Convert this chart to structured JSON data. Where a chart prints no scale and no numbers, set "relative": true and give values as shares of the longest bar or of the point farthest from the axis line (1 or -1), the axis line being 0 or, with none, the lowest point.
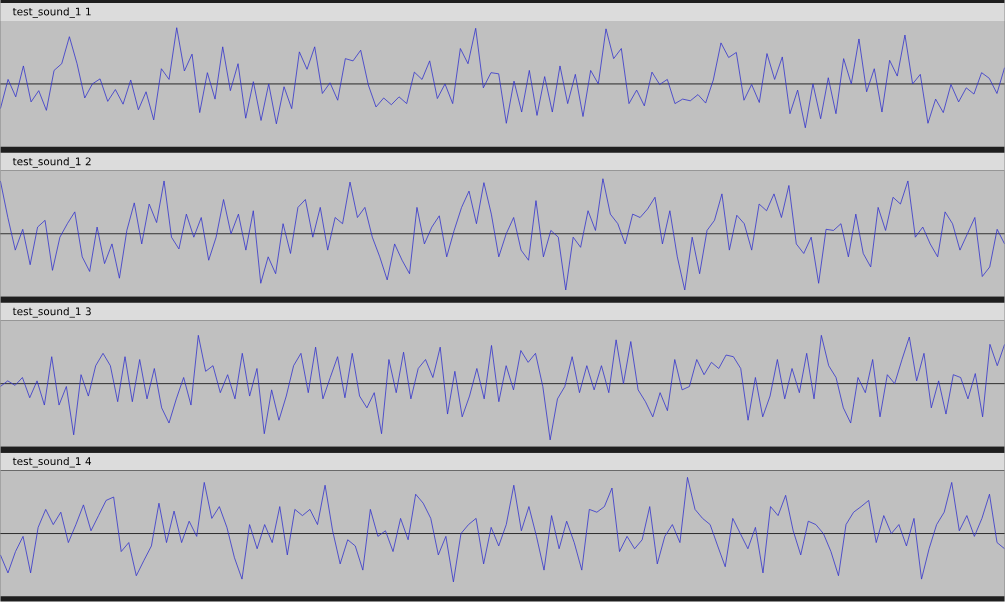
{
  "chart_data": [
    {
      "type": "line",
      "title": "test_sound_1 1",
      "relative": true,
      "color": "#3333cc",
      "categories": [
        null,
        null,
        null,
        null,
        null,
        null,
        null,
        null,
        null,
        null,
        null,
        null,
        null,
        null,
        null,
        null,
        null,
        null,
        null,
        null,
        null,
        null,
        null,
        null,
        null,
        null,
        null,
        null,
        null,
        null,
        null,
        null,
        null,
        null,
        null,
        null,
        null,
        null,
        null,
        null,
        null,
        null,
        null,
        null,
        null,
        null,
        null,
        null,
        null,
        null,
        null,
        null,
        null,
        null,
        null,
        null,
        null,
        null,
        null,
        null,
        null,
        null,
        null,
        null,
        null,
        null,
        null,
        null,
        null,
        null,
        null,
        null,
        null,
        null,
        null,
        null,
        null,
        null,
        null,
        null,
        null,
        null,
        null,
        null,
        null,
        null,
        null,
        null,
        null,
        null,
        null,
        null,
        null,
        null,
        null,
        null,
        null,
        null,
        null,
        null,
        null,
        null,
        null,
        null,
        null,
        null,
        null,
        null,
        null,
        null,
        null,
        null,
        null,
        null,
        null,
        null,
        null,
        null,
        null,
        null,
        null,
        null,
        null,
        null,
        null,
        null,
        null,
        null,
        null,
        null,
        null,
        null
      ],
      "values": [
        -0.44,
        0.08,
        -0.23,
        0.32,
        -0.32,
        -0.12,
        -0.47,
        0.24,
        0.36,
        0.84,
        0.36,
        -0.25,
        0,
        0.09,
        -0.31,
        -0.1,
        -0.36,
        0.07,
        -0.46,
        -0.14,
        -0.64,
        0.27,
        0.08,
        1.0,
        0.23,
        0.53,
        -0.51,
        0.2,
        -0.27,
        0.66,
        -0.12,
        0.36,
        -0.61,
        0.04,
        -0.65,
        0,
        -0.71,
        -0.05,
        -0.44,
        0.57,
        0.26,
        0.66,
        -0.17,
        0.02,
        -0.29,
        0.45,
        0.41,
        0.6,
        -0.02,
        -0.41,
        -0.25,
        -0.37,
        -0.23,
        -0.35,
        0.21,
        0.08,
        0.41,
        -0.26,
        0,
        -0.35,
        0.63,
        0.36,
        0.99,
        -0.07,
        0.2,
        0.18,
        -0.7,
        0.05,
        -0.5,
        0.24,
        -0.56,
        0.13,
        -0.5,
        0.32,
        -0.35,
        0.17,
        -0.58,
        0.24,
        0,
        0.98,
        0.45,
        0.63,
        -0.35,
        -0.11,
        -0.39,
        0.21,
        -0.01,
        0.08,
        -0.35,
        -0.27,
        -0.3,
        -0.19,
        -0.34,
        0.07,
        0.73,
        0.47,
        0.56,
        -0.29,
        -0.01,
        -0.33,
        0.54,
        0.08,
        0.48,
        -0.53,
        -0.11,
        -0.78,
        0,
        -0.62,
        0.11,
        -0.53,
        0.45,
        0,
        0.8,
        -0.14,
        0.27,
        -0.5,
        0.42,
        0.14,
        0.87,
        0,
        0.17,
        -0.7,
        -0.27,
        -0.51,
        -0.01,
        -0.32,
        -0.07,
        -0.18,
        0.2,
        0.1,
        -0.17,
        0.29
      ]
    },
    {
      "type": "line",
      "title": "test_sound_1 2",
      "relative": true,
      "color": "#3333cc",
      "categories": [
        null,
        null,
        null,
        null,
        null,
        null,
        null,
        null,
        null,
        null,
        null,
        null,
        null,
        null,
        null,
        null,
        null,
        null,
        null,
        null,
        null,
        null,
        null,
        null,
        null,
        null,
        null,
        null,
        null,
        null,
        null,
        null,
        null,
        null,
        null,
        null,
        null,
        null,
        null,
        null,
        null,
        null,
        null,
        null,
        null,
        null,
        null,
        null,
        null,
        null,
        null,
        null,
        null,
        null,
        null,
        null,
        null,
        null,
        null,
        null,
        null,
        null,
        null,
        null,
        null,
        null,
        null,
        null,
        null,
        null,
        null,
        null,
        null,
        null,
        null,
        null,
        null,
        null,
        null,
        null,
        null,
        null,
        null,
        null,
        null,
        null,
        null,
        null,
        null,
        null,
        null,
        null,
        null,
        null,
        null,
        null,
        null,
        null,
        null,
        null,
        null,
        null,
        null,
        null,
        null,
        null,
        null,
        null,
        null,
        null,
        null,
        null,
        null,
        null,
        null,
        null,
        null,
        null,
        null,
        null,
        null,
        null,
        null,
        null,
        null,
        null,
        null,
        null,
        null,
        null,
        null,
        null,
        null,
        null,
        null,
        null
      ],
      "values": [
        0.94,
        0.29,
        -0.29,
        0.08,
        -0.55,
        0.12,
        0.24,
        -0.65,
        -0.06,
        0.18,
        0.39,
        -0.41,
        -0.67,
        0.12,
        -0.53,
        -0.18,
        -0.79,
        0.06,
        0.55,
        -0.18,
        0.53,
        0.2,
        0.94,
        -0.06,
        -0.27,
        0.35,
        -0.06,
        0.29,
        -0.47,
        -0.06,
        0.61,
        0,
        0.35,
        -0.29,
        0.41,
        -0.88,
        -0.41,
        -0.71,
        0.18,
        -0.35,
        0.47,
        0.61,
        -0.06,
        0.47,
        -0.29,
        0.29,
        0.18,
        0.92,
        0.29,
        0.47,
        -0.06,
        -0.41,
        -0.82,
        -0.18,
        -0.47,
        -0.71,
        0.47,
        -0.18,
        0.12,
        0.32,
        -0.41,
        0.06,
        0.47,
        0.76,
        0.18,
        0.91,
        0.35,
        -0.41,
        0,
        0.29,
        -0.29,
        -0.47,
        0.59,
        -0.41,
        0.06,
        -0.06,
        -1.0,
        -0.06,
        -0.24,
        0.41,
        0.06,
        0.98,
        0.35,
        0.18,
        -0.18,
        0.35,
        0.29,
        0.44,
        0.65,
        -0.18,
        0.41,
        -0.41,
        -1.0,
        -0.06,
        -0.71,
        0.06,
        0.24,
        0.71,
        -0.29,
        0.33,
        0.18,
        -0.29,
        0.53,
        0.41,
        0.71,
        0.29,
        0.86,
        -0.18,
        -0.35,
        -0.06,
        -0.88,
        0.08,
        0.06,
        0.18,
        -0.41,
        0.35,
        -0.35,
        -0.59,
        0.47,
        0.06,
        0.65,
        0.53,
        0.94,
        -0.06,
        0.12,
        -0.18,
        -0.41,
        0.39,
        0.18,
        -0.29,
        0,
        0.29,
        -0.76,
        -0.59,
        0.08,
        -0.18
      ]
    },
    {
      "type": "line",
      "title": "test_sound_1 3",
      "relative": true,
      "color": "#3333cc",
      "categories": [
        null,
        null,
        null,
        null,
        null,
        null,
        null,
        null,
        null,
        null,
        null,
        null,
        null,
        null,
        null,
        null,
        null,
        null,
        null,
        null,
        null,
        null,
        null,
        null,
        null,
        null,
        null,
        null,
        null,
        null,
        null,
        null,
        null,
        null,
        null,
        null,
        null,
        null,
        null,
        null,
        null,
        null,
        null,
        null,
        null,
        null,
        null,
        null,
        null,
        null,
        null,
        null,
        null,
        null,
        null,
        null,
        null,
        null,
        null,
        null,
        null,
        null,
        null,
        null,
        null,
        null,
        null,
        null,
        null,
        null,
        null,
        null,
        null,
        null,
        null,
        null,
        null,
        null,
        null,
        null,
        null,
        null,
        null,
        null,
        null,
        null,
        null,
        null,
        null,
        null,
        null,
        null,
        null,
        null,
        null,
        null,
        null,
        null,
        null,
        null,
        null,
        null,
        null,
        null,
        null,
        null,
        null,
        null,
        null,
        null,
        null,
        null,
        null,
        null,
        null,
        null,
        null,
        null,
        null,
        null,
        null,
        null,
        null,
        null,
        null,
        null,
        null,
        null,
        null,
        null,
        null,
        null,
        null,
        null,
        null,
        null,
        null,
        null
      ],
      "values": [
        -0.05,
        0.05,
        -0.03,
        0.11,
        -0.25,
        0.05,
        -0.38,
        0.48,
        -0.38,
        -0.05,
        -0.91,
        0.16,
        -0.22,
        0.32,
        0.54,
        0.32,
        -0.32,
        0.48,
        -0.32,
        0.43,
        -0.27,
        0.27,
        -0.43,
        -0.7,
        -0.27,
        0.11,
        -0.38,
        0.86,
        0.22,
        0.32,
        -0.16,
        0.16,
        -0.27,
        0.54,
        -0.22,
        0.27,
        -0.89,
        -0.11,
        -0.65,
        -0.22,
        0.32,
        0.54,
        -0.16,
        0.65,
        -0.27,
        0.11,
        0.48,
        -0.25,
        0.54,
        -0.22,
        -0.43,
        -0.16,
        -0.89,
        0.43,
        -0.16,
        0.56,
        -0.27,
        0.27,
        0.43,
        0.11,
        0.65,
        -0.54,
        0.22,
        -0.59,
        -0.22,
        0.27,
        -0.27,
        0.68,
        -0.32,
        0.32,
        -0.11,
        0.59,
        0.38,
        0.54,
        -0.05,
        -1.0,
        -0.27,
        -0.05,
        0.48,
        -0.16,
        0.32,
        -0.11,
        0.32,
        -0.16,
        0.78,
        0,
        0.75,
        -0.11,
        -0.32,
        -0.59,
        -0.16,
        -0.48,
        0.43,
        -0.11,
        -0.05,
        0.43,
        0.16,
        0.38,
        0.27,
        0.51,
        0.48,
        0.27,
        -0.65,
        0.11,
        -0.59,
        -0.22,
        0.43,
        -0.27,
        0.27,
        -0.16,
        0.54,
        -0.27,
        0.86,
        0.32,
        0.11,
        -0.43,
        -0.7,
        0.11,
        -0.16,
        0.43,
        -0.59,
        0.16,
        0,
        0.43,
        0.83,
        0.05,
        0.54,
        -0.43,
        0.05,
        -0.54,
        0.16,
        0.11,
        -0.27,
        0.18,
        -0.59,
        0.7,
        0.32,
        0.7
      ]
    },
    {
      "type": "line",
      "title": "test_sound_1 4",
      "relative": true,
      "color": "#3333cc",
      "categories": [
        null,
        null,
        null,
        null,
        null,
        null,
        null,
        null,
        null,
        null,
        null,
        null,
        null,
        null,
        null,
        null,
        null,
        null,
        null,
        null,
        null,
        null,
        null,
        null,
        null,
        null,
        null,
        null,
        null,
        null,
        null,
        null,
        null,
        null,
        null,
        null,
        null,
        null,
        null,
        null,
        null,
        null,
        null,
        null,
        null,
        null,
        null,
        null,
        null,
        null,
        null,
        null,
        null,
        null,
        null,
        null,
        null,
        null,
        null,
        null,
        null,
        null,
        null,
        null,
        null,
        null,
        null,
        null,
        null,
        null,
        null,
        null,
        null,
        null,
        null,
        null,
        null,
        null,
        null,
        null,
        null,
        null,
        null,
        null,
        null,
        null,
        null,
        null,
        null,
        null,
        null,
        null,
        null,
        null,
        null,
        null,
        null,
        null,
        null,
        null,
        null,
        null,
        null,
        null,
        null,
        null,
        null,
        null,
        null,
        null,
        null,
        null,
        null,
        null,
        null,
        null,
        null,
        null,
        null,
        null,
        null,
        null,
        null,
        null,
        null,
        null,
        null,
        null,
        null,
        null,
        null,
        null,
        null,
        null
      ],
      "values": [
        -0.38,
        -0.7,
        -0.32,
        -0.05,
        -0.7,
        0.11,
        0.43,
        0.16,
        0.38,
        -0.16,
        0.16,
        0.51,
        0.05,
        0.32,
        0.59,
        0.65,
        -0.32,
        -0.16,
        -0.75,
        -0.48,
        -0.22,
        0.54,
        -0.16,
        0.4,
        -0.16,
        0.22,
        -0.05,
        0.91,
        0.27,
        0.48,
        0.11,
        -0.43,
        -0.81,
        0.16,
        -0.27,
        0.16,
        -0.16,
        0.48,
        -0.38,
        0.43,
        0.32,
        0.43,
        0.16,
        0.86,
        0.05,
        -0.54,
        -0.11,
        -0.22,
        -0.65,
        0.43,
        -0.05,
        0.05,
        -0.32,
        0.27,
        -0.11,
        0.7,
        0.54,
        0.27,
        -0.38,
        -0.05,
        -0.86,
        0,
        0.16,
        0.27,
        -0.54,
        0.11,
        -0.22,
        0.16,
        0.86,
        0.05,
        0.48,
        -0.05,
        -0.65,
        0.32,
        -0.27,
        0.22,
        -0.16,
        -0.65,
        0.43,
        0.38,
        0.48,
        0.81,
        -0.32,
        -0.05,
        -0.27,
        -0.11,
        0.48,
        -0.54,
        -0.05,
        0.16,
        -0.16,
        1.0,
        0.43,
        0.27,
        0.16,
        -0.22,
        -0.59,
        0.27,
        0,
        -0.27,
        0.11,
        -0.7,
        0.48,
        0.32,
        0.68,
        0.05,
        -0.38,
        0.22,
        0.16,
        0,
        -0.32,
        -0.75,
        0.16,
        0.38,
        0.48,
        0.59,
        -0.16,
        0.32,
        0,
        0.16,
        -0.22,
        0.27,
        -0.81,
        -0.27,
        0.16,
        0.38,
        0.91,
        0.05,
        0.32,
        -0.05,
        0.27,
        0.7,
        -0.16,
        -0.27
      ]
    }
  ]
}
